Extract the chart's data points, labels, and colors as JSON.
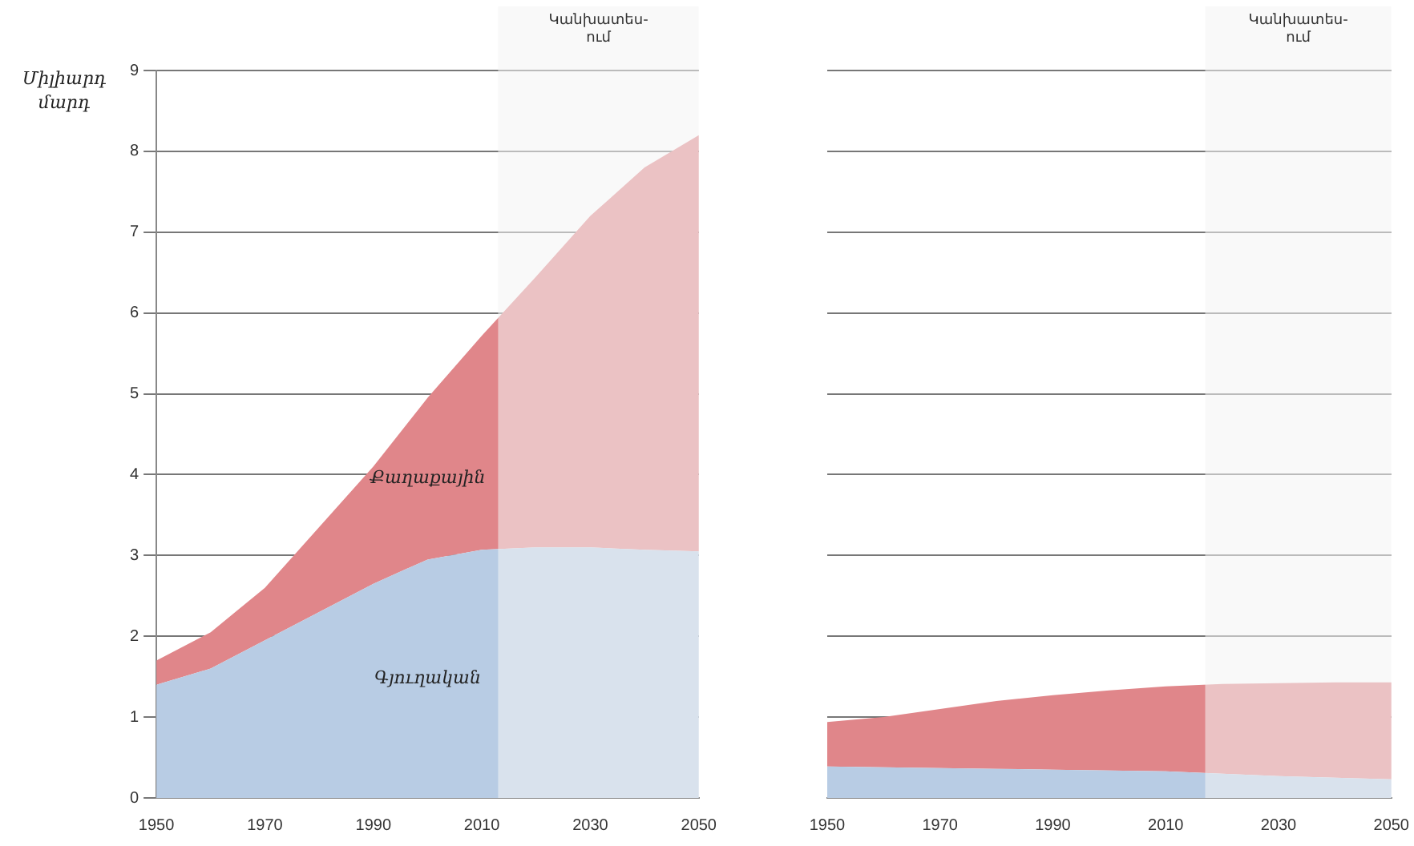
{
  "chart_data": [
    {
      "type": "area",
      "stacked": true,
      "ylabel": "Միլիարդ մարդ",
      "x": [
        1950,
        1960,
        1970,
        1980,
        1990,
        2000,
        2010,
        2020,
        2030,
        2040,
        2050
      ],
      "series": [
        {
          "name": "Գյուղական",
          "color": "#b8cce4",
          "values": [
            1.4,
            1.6,
            1.95,
            2.3,
            2.65,
            2.95,
            3.07,
            3.1,
            3.1,
            3.07,
            3.05
          ]
        },
        {
          "name": "Քաղաքային",
          "color": "#e0868a",
          "values": [
            0.3,
            0.45,
            0.65,
            1.05,
            1.45,
            2.0,
            2.65,
            3.35,
            4.1,
            4.73,
            5.15
          ]
        }
      ],
      "xlim": [
        1950,
        2050
      ],
      "xticks": [
        1950,
        1970,
        1990,
        2010,
        2030,
        2050
      ],
      "ylim": [
        0,
        9
      ],
      "yticks": [
        0,
        1,
        2,
        3,
        4,
        5,
        6,
        7,
        8,
        9
      ],
      "grid": "y",
      "bands": [
        {
          "axis": "x",
          "from": 2013,
          "to": 2050,
          "label": "Կանխատես-\nում",
          "color": "#f4f4f4"
        }
      ]
    },
    {
      "type": "area",
      "stacked": true,
      "x": [
        1950,
        1960,
        1970,
        1980,
        1990,
        2000,
        2010,
        2020,
        2030,
        2040,
        2050
      ],
      "series": [
        {
          "color": "#b8cce4",
          "values": [
            0.39,
            0.38,
            0.37,
            0.36,
            0.35,
            0.34,
            0.33,
            0.3,
            0.27,
            0.25,
            0.23
          ]
        },
        {
          "color": "#e0868a",
          "values": [
            0.55,
            0.62,
            0.73,
            0.84,
            0.92,
            0.99,
            1.05,
            1.11,
            1.15,
            1.18,
            1.2
          ]
        }
      ],
      "xlim": [
        1950,
        2050
      ],
      "xticks": [
        1950,
        1970,
        1990,
        2010,
        2030,
        2050
      ],
      "ylim": [
        0,
        9
      ],
      "yticks": [
        0,
        1,
        2,
        3,
        4,
        5,
        6,
        7,
        8,
        9
      ],
      "grid": "y",
      "tick_labels": "x",
      "bands": [
        {
          "axis": "x",
          "from": 2017,
          "to": 2050,
          "label": "Կանխատես-\nում",
          "color": "#f4f4f4"
        }
      ]
    }
  ]
}
